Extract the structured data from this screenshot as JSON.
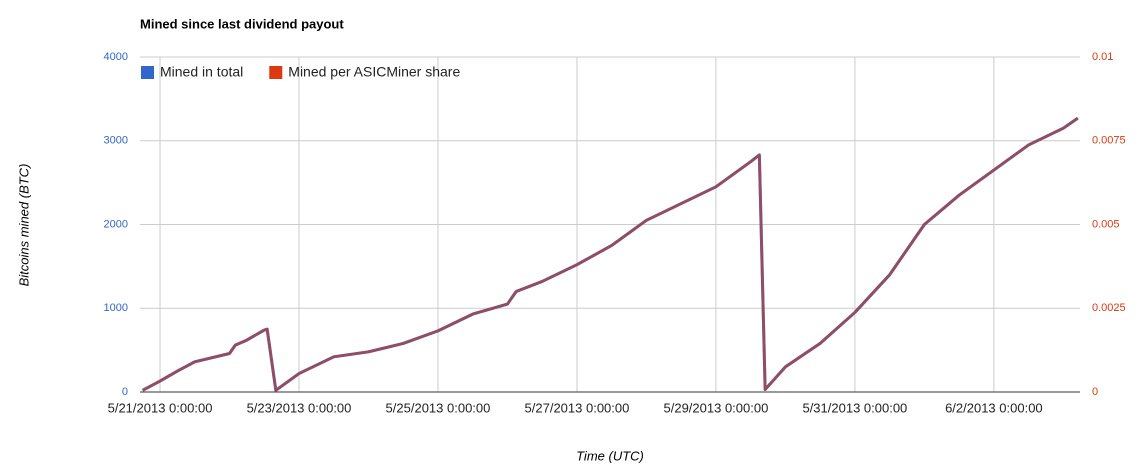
{
  "chart_data": {
    "type": "line",
    "title": "Mined since last dividend payout",
    "x_label": "Time (UTC)",
    "y_label": "Bitcoins mined (BTC)",
    "x": [
      "2013-05-20T18:00",
      "2013-05-21T00:00",
      "2013-05-21T06:00",
      "2013-05-21T12:00",
      "2013-05-22T00:00",
      "2013-05-22T02:00",
      "2013-05-22T06:00",
      "2013-05-22T12:00",
      "2013-05-22T13:00",
      "2013-05-22T16:00",
      "2013-05-23T00:00",
      "2013-05-23T12:00",
      "2013-05-24T00:00",
      "2013-05-24T12:00",
      "2013-05-25T00:00",
      "2013-05-25T12:00",
      "2013-05-26T00:00",
      "2013-05-26T03:00",
      "2013-05-26T12:00",
      "2013-05-27T00:00",
      "2013-05-27T12:00",
      "2013-05-28T00:00",
      "2013-05-28T12:00",
      "2013-05-29T00:00",
      "2013-05-29T12:00",
      "2013-05-29T15:00",
      "2013-05-29T17:00",
      "2013-05-30T00:00",
      "2013-05-30T12:00",
      "2013-05-31T00:00",
      "2013-05-31T12:00",
      "2013-06-01T00:00",
      "2013-06-01T12:00",
      "2013-06-02T00:00",
      "2013-06-02T12:00",
      "2013-06-03T00:00",
      "2013-06-03T05:00"
    ],
    "series": [
      {
        "name": "Mined in total",
        "color": "#3366cc",
        "axis": "y",
        "values": [
          20,
          130,
          250,
          360,
          460,
          560,
          620,
          740,
          750,
          20,
          220,
          420,
          480,
          580,
          730,
          930,
          1050,
          1200,
          1320,
          1520,
          1750,
          2050,
          2250,
          2450,
          2750,
          2830,
          30,
          300,
          580,
          950,
          1400,
          2000,
          2350,
          2650,
          2950,
          3150,
          3270
        ]
      },
      {
        "name": "Mined per ASICMiner share",
        "color": "#dc3912",
        "axis": "y2",
        "values": [
          5e-05,
          0.000325,
          0.000625,
          0.0009,
          0.00115,
          0.0014,
          0.00155,
          0.00185,
          0.001875,
          5e-05,
          0.00055,
          0.00105,
          0.0012,
          0.00145,
          0.001825,
          0.002325,
          0.002625,
          0.003,
          0.0033,
          0.0038,
          0.004375,
          0.005125,
          0.005625,
          0.006125,
          0.006875,
          0.007075,
          7.5e-05,
          0.00075,
          0.00145,
          0.002375,
          0.0035,
          0.005,
          0.005875,
          0.006625,
          0.007375,
          0.007875,
          0.008175
        ]
      }
    ],
    "xlim": [
      "2013-05-20T17:05",
      "2013-06-03T05:45"
    ],
    "xticks": [
      {
        "value": "2013-05-21T00:00",
        "label": "5/21/2013 0:00:00"
      },
      {
        "value": "2013-05-23T00:00",
        "label": "5/23/2013 0:00:00"
      },
      {
        "value": "2013-05-25T00:00",
        "label": "5/25/2013 0:00:00"
      },
      {
        "value": "2013-05-27T00:00",
        "label": "5/27/2013 0:00:00"
      },
      {
        "value": "2013-05-29T00:00",
        "label": "5/29/2013 0:00:00"
      },
      {
        "value": "2013-05-31T00:00",
        "label": "5/31/2013 0:00:00"
      },
      {
        "value": "2013-06-02T00:00",
        "label": "6/2/2013 0:00:00"
      }
    ],
    "ylim": [
      0,
      4000
    ],
    "yticks": [
      0,
      1000,
      2000,
      3000,
      4000
    ],
    "y2lim": [
      0,
      0.01
    ],
    "y2ticks": [
      0,
      0.0025,
      0.005,
      0.0075,
      0.01
    ],
    "grid": true,
    "legend": "top-left"
  }
}
